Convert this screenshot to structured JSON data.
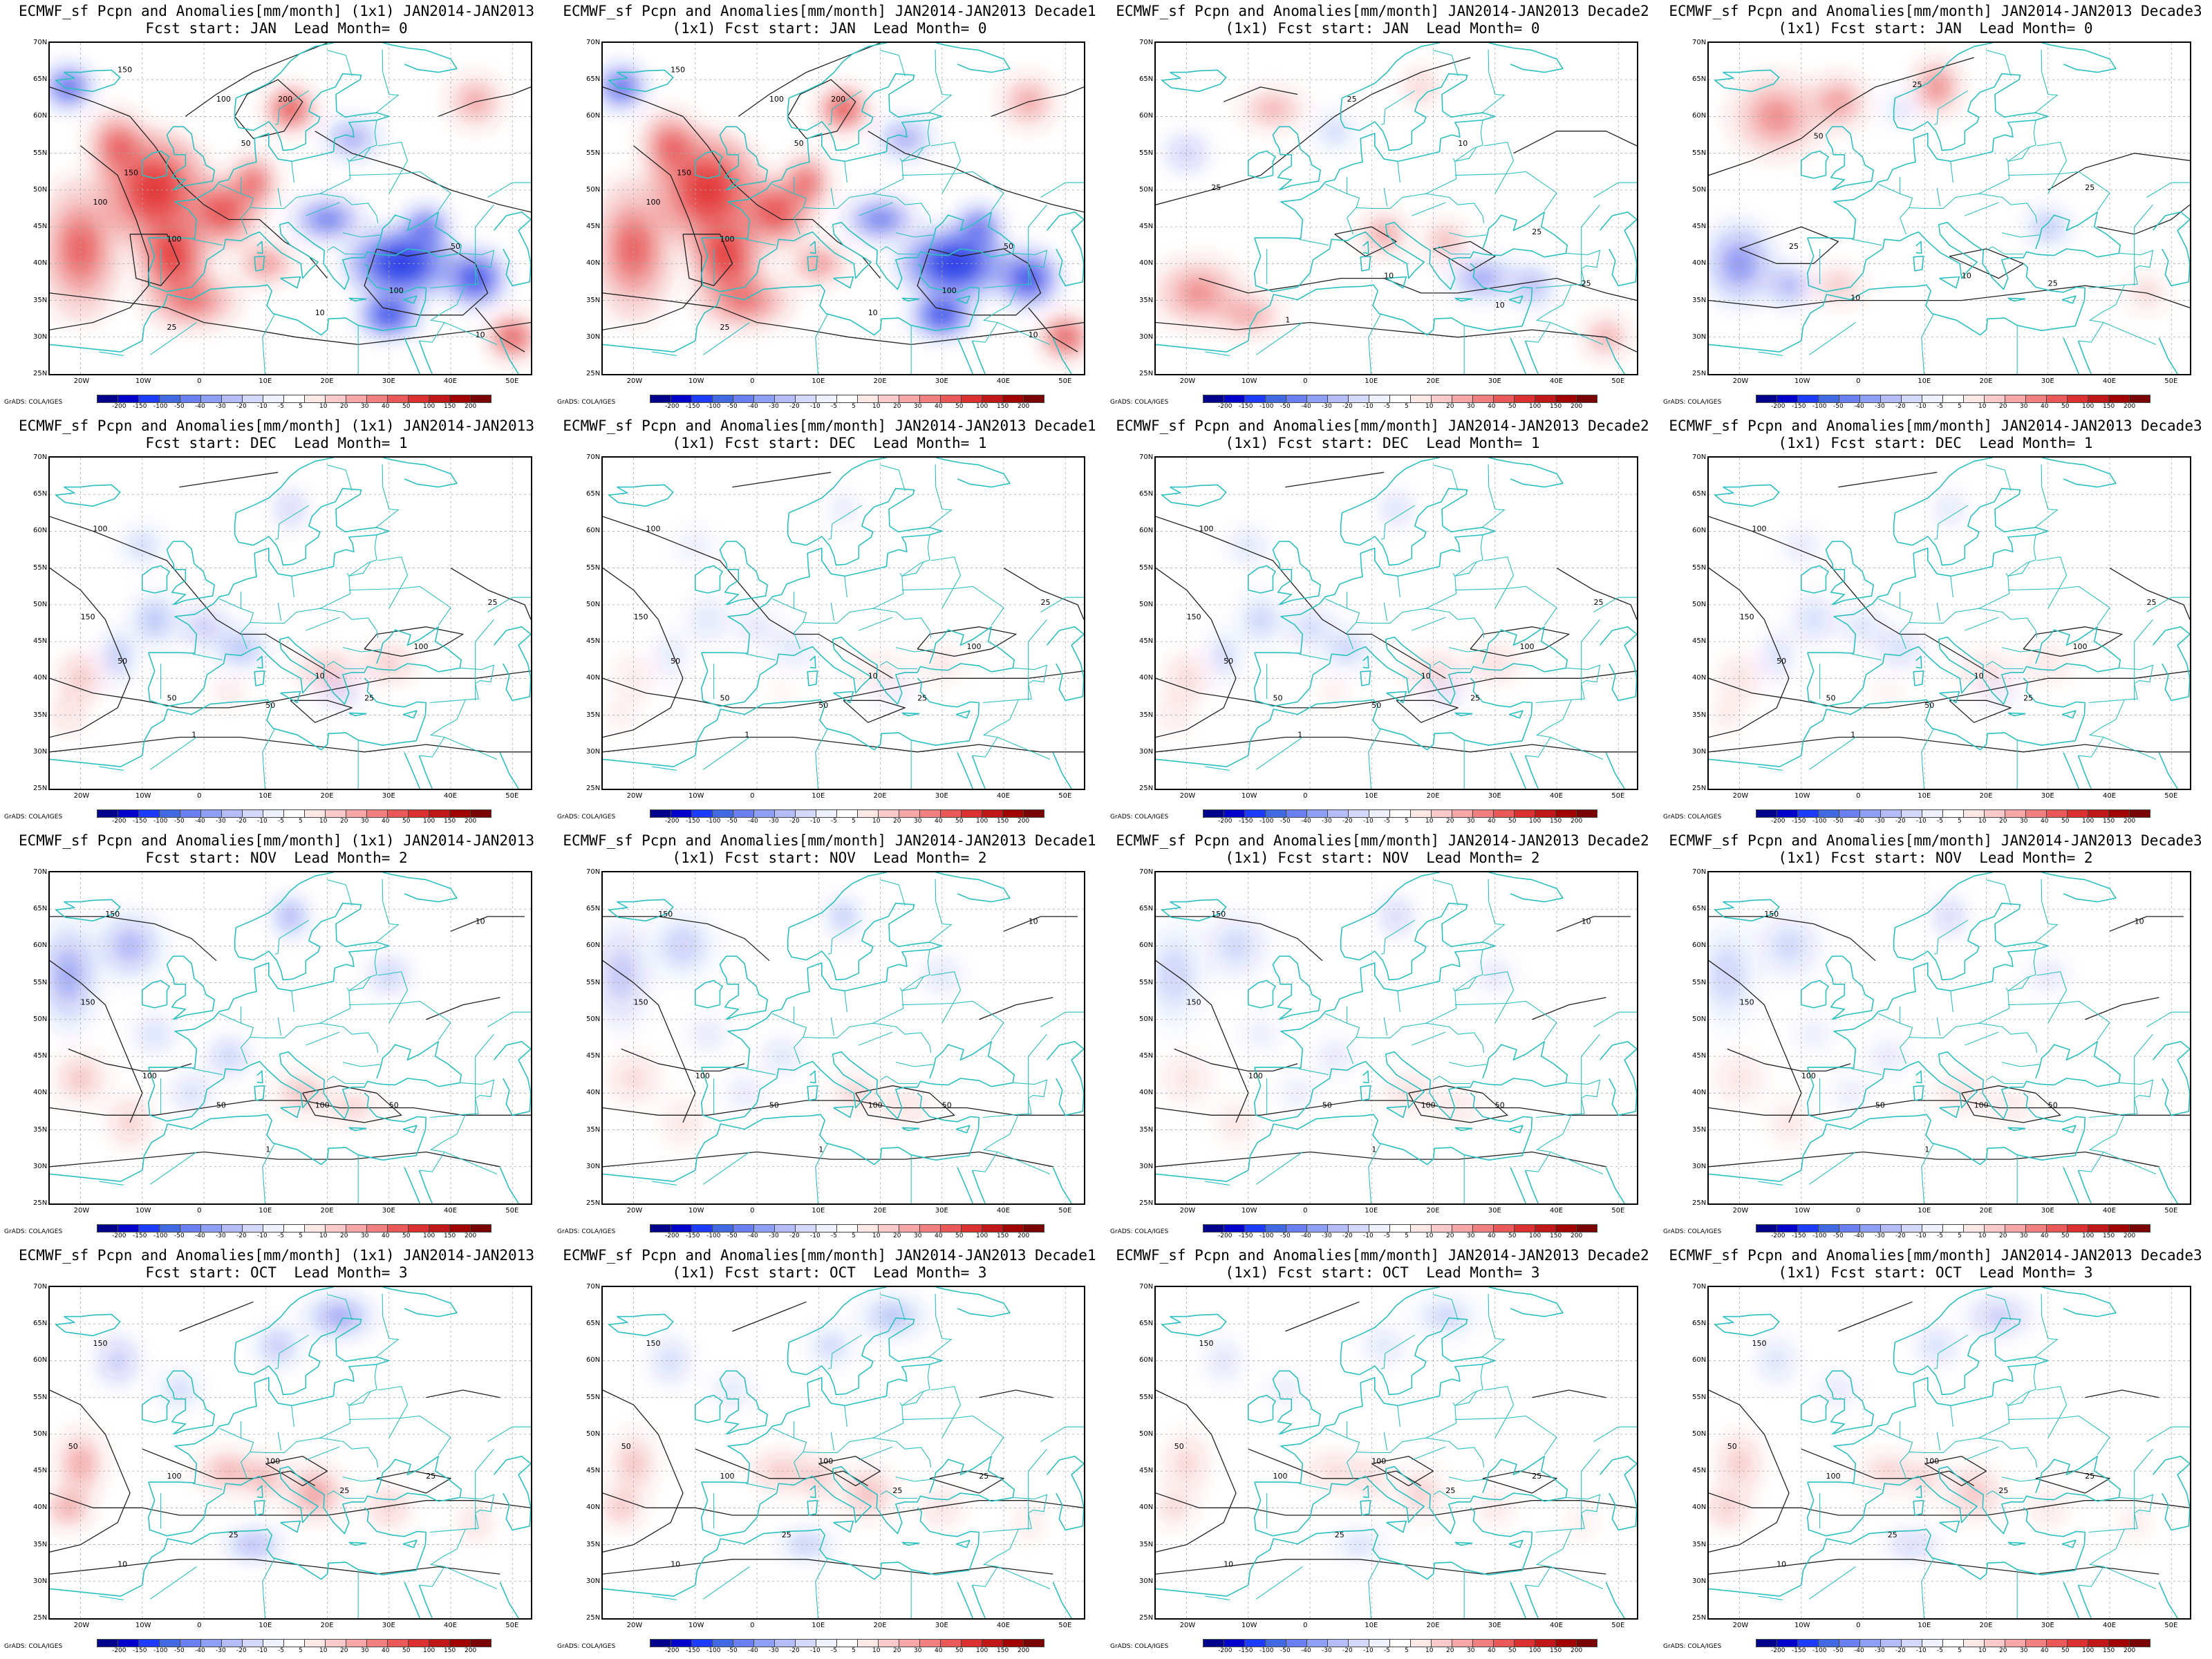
{
  "panels": [
    {
      "line1": "ECMWF_sf Pcpn and Anomalies[mm/month] (1x1) JAN2014-JAN2013",
      "line2": "Fcst start: JAN  Lead Month= 0",
      "intensity": 1.0,
      "pattern": "a"
    },
    {
      "line1": "ECMWF_sf Pcpn and Anomalies[mm/month] JAN2014-JAN2013 Decade1",
      "line2": "(1x1) Fcst start: JAN  Lead Month= 0",
      "intensity": 1.0,
      "pattern": "a"
    },
    {
      "line1": "ECMWF_sf Pcpn and Anomalies[mm/month] JAN2014-JAN2013 Decade2",
      "line2": "(1x1) Fcst start: JAN  Lead Month= 0",
      "intensity": 0.45,
      "pattern": "b"
    },
    {
      "line1": "ECMWF_sf Pcpn and Anomalies[mm/month] JAN2014-JAN2013 Decade3",
      "line2": "(1x1) Fcst start: JAN  Lead Month= 0",
      "intensity": 0.5,
      "pattern": "c"
    },
    {
      "line1": "ECMWF_sf Pcpn and Anomalies[mm/month] (1x1) JAN2014-JAN2013",
      "line2": "Fcst start: DEC  Lead Month= 1",
      "intensity": 0.35,
      "pattern": "d"
    },
    {
      "line1": "ECMWF_sf Pcpn and Anomalies[mm/month] JAN2014-JAN2013 Decade1",
      "line2": "(1x1) Fcst start: DEC  Lead Month= 1",
      "intensity": 0.15,
      "pattern": "d"
    },
    {
      "line1": "ECMWF_sf Pcpn and Anomalies[mm/month] JAN2014-JAN2013 Decade2",
      "line2": "(1x1) Fcst start: DEC  Lead Month= 1",
      "intensity": 0.25,
      "pattern": "d"
    },
    {
      "line1": "ECMWF_sf Pcpn and Anomalies[mm/month] JAN2014-JAN2013 Decade3",
      "line2": "(1x1) Fcst start: DEC  Lead Month= 1",
      "intensity": 0.2,
      "pattern": "d"
    },
    {
      "line1": "ECMWF_sf Pcpn and Anomalies[mm/month] (1x1) JAN2014-JAN2013",
      "line2": "Fcst start: NOV  Lead Month= 2",
      "intensity": 0.4,
      "pattern": "e"
    },
    {
      "line1": "ECMWF_sf Pcpn and Anomalies[mm/month] JAN2014-JAN2013 Decade1",
      "line2": "(1x1) Fcst start: NOV  Lead Month= 2",
      "intensity": 0.25,
      "pattern": "e"
    },
    {
      "line1": "ECMWF_sf Pcpn and Anomalies[mm/month] JAN2014-JAN2013 Decade2",
      "line2": "(1x1) Fcst start: NOV  Lead Month= 2",
      "intensity": 0.2,
      "pattern": "e"
    },
    {
      "line1": "ECMWF_sf Pcpn and Anomalies[mm/month] JAN2014-JAN2013 Decade3",
      "line2": "(1x1) Fcst start: NOV  Lead Month= 2",
      "intensity": 0.2,
      "pattern": "e"
    },
    {
      "line1": "ECMWF_sf Pcpn and Anomalies[mm/month] (1x1) JAN2014-JAN2013",
      "line2": "Fcst start: OCT  Lead Month= 3",
      "intensity": 0.45,
      "pattern": "f"
    },
    {
      "line1": "ECMWF_sf Pcpn and Anomalies[mm/month] JAN2014-JAN2013 Decade1",
      "line2": "(1x1) Fcst start: OCT  Lead Month= 3",
      "intensity": 0.3,
      "pattern": "f"
    },
    {
      "line1": "ECMWF_sf Pcpn and Anomalies[mm/month] JAN2014-JAN2013 Decade2",
      "line2": "(1x1) Fcst start: OCT  Lead Month= 3",
      "intensity": 0.2,
      "pattern": "f"
    },
    {
      "line1": "ECMWF_sf Pcpn and Anomalies[mm/month] JAN2014-JAN2013 Decade3",
      "line2": "(1x1) Fcst start: OCT  Lead Month= 3",
      "intensity": 0.25,
      "pattern": "f"
    }
  ],
  "lat_labels": [
    "70N",
    "65N",
    "60N",
    "55N",
    "50N",
    "45N",
    "40N",
    "35N",
    "30N",
    "25N"
  ],
  "lon_labels": [
    "20W",
    "10W",
    "0",
    "10E",
    "20E",
    "30E",
    "40E",
    "50E"
  ],
  "colorbar": {
    "ticks": [
      "-200",
      "-150",
      "-100",
      "-50",
      "-40",
      "-30",
      "-20",
      "-10",
      "-5",
      "5",
      "10",
      "20",
      "30",
      "40",
      "50",
      "100",
      "150",
      "200"
    ],
    "colors": [
      "#00008b",
      "#0000cd",
      "#1e3cff",
      "#4169e1",
      "#6a7ff0",
      "#8f9ff5",
      "#b4bdf8",
      "#d4d9fb",
      "#eef0fd",
      "#ffffff",
      "#fde8e8",
      "#fbc9c9",
      "#f7a6a6",
      "#f27f7f",
      "#ea5858",
      "#dc2f2f",
      "#c01818",
      "#a00000",
      "#7a0000"
    ]
  },
  "credit": "GrADS: COLA/IGES",
  "colors": {
    "coast": "#2cc0c0",
    "contour": "#222222",
    "positive": "#e23030",
    "negative": "#1e32e6"
  }
}
